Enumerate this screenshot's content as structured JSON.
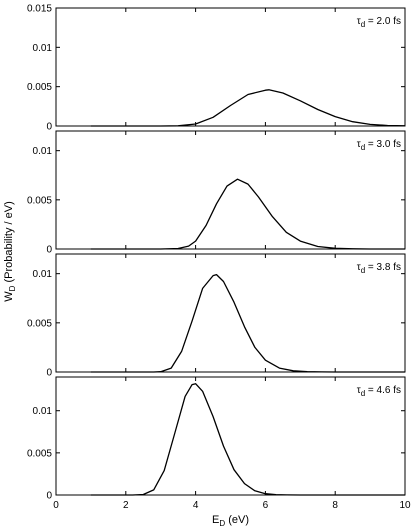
{
  "chart_data": {
    "type": "line",
    "xlabel": {
      "main": "E",
      "sub": "D",
      "rest": " (eV)"
    },
    "ylabel": {
      "main": "W",
      "sub": "D",
      "rest": " (Probability / eV)"
    },
    "xlim": [
      0,
      10
    ],
    "xticks": [
      0,
      2,
      4,
      6,
      8,
      10
    ],
    "panels": [
      {
        "annotation": {
          "symbol": "τ",
          "sub": "d",
          "text": " = 2.0 fs"
        },
        "ylim": [
          0,
          0.015
        ],
        "yticks": [
          0,
          0.005,
          0.01,
          0.015
        ],
        "ytick_labels": [
          "0",
          "0.005",
          "0.01",
          "0.015"
        ],
        "x": [
          1.0,
          3.0,
          3.5,
          4.0,
          4.5,
          5.0,
          5.5,
          6.0,
          6.1,
          6.5,
          7.0,
          7.5,
          8.0,
          8.5,
          9.0,
          9.5,
          10.0
        ],
        "y": [
          0,
          2e-06,
          3e-05,
          0.00025,
          0.0011,
          0.0026,
          0.004,
          0.00455,
          0.0046,
          0.0042,
          0.0032,
          0.0021,
          0.0012,
          0.00055,
          0.0002,
          6e-05,
          2e-05
        ]
      },
      {
        "annotation": {
          "symbol": "τ",
          "sub": "d",
          "text": " = 3.0 fs"
        },
        "ylim": [
          0,
          0.012
        ],
        "yticks": [
          0,
          0.005,
          0.01
        ],
        "ytick_labels": [
          "0",
          "0.005",
          "0.01"
        ],
        "x": [
          1.0,
          3.0,
          3.5,
          3.8,
          4.0,
          4.3,
          4.6,
          4.9,
          5.2,
          5.5,
          5.8,
          6.2,
          6.6,
          7.0,
          7.5,
          8.0,
          8.5,
          9.0,
          10.0
        ],
        "y": [
          0,
          2e-06,
          5e-05,
          0.0003,
          0.0008,
          0.0024,
          0.0046,
          0.0064,
          0.0071,
          0.0066,
          0.0053,
          0.0033,
          0.0017,
          0.0008,
          0.00025,
          7e-05,
          2e-05,
          5e-06,
          0
        ]
      },
      {
        "annotation": {
          "symbol": "τ",
          "sub": "d",
          "text": " = 3.8 fs"
        },
        "ylim": [
          0,
          0.012
        ],
        "yticks": [
          0,
          0.005,
          0.01
        ],
        "ytick_labels": [
          "0",
          "0.005",
          "0.01"
        ],
        "x": [
          1.0,
          2.8,
          3.0,
          3.3,
          3.6,
          3.9,
          4.2,
          4.5,
          4.6,
          4.8,
          5.1,
          5.4,
          5.7,
          6.0,
          6.4,
          6.8,
          7.2,
          7.6,
          8.0,
          10.0
        ],
        "y": [
          0,
          2e-06,
          3e-05,
          0.0004,
          0.0021,
          0.0052,
          0.0085,
          0.0098,
          0.0099,
          0.0092,
          0.0071,
          0.0046,
          0.0025,
          0.0012,
          0.0004,
          0.00012,
          3e-05,
          1e-05,
          0,
          0
        ]
      },
      {
        "annotation": {
          "symbol": "τ",
          "sub": "d",
          "text": " = 4.6 fs"
        },
        "ylim": [
          0,
          0.014
        ],
        "yticks": [
          0,
          0.005,
          0.01
        ],
        "ytick_labels": [
          "0",
          "0.005",
          "0.01"
        ],
        "x": [
          1.0,
          2.2,
          2.5,
          2.8,
          3.1,
          3.4,
          3.7,
          3.9,
          4.0,
          4.2,
          4.5,
          4.8,
          5.1,
          5.4,
          5.7,
          6.0,
          6.3,
          6.6,
          7.0,
          10.0
        ],
        "y": [
          0,
          5e-06,
          6e-05,
          0.0006,
          0.0029,
          0.0073,
          0.0117,
          0.0131,
          0.0132,
          0.0123,
          0.0093,
          0.0058,
          0.003,
          0.00135,
          0.0005,
          0.00016,
          5e-05,
          1e-05,
          0,
          0
        ]
      }
    ]
  }
}
